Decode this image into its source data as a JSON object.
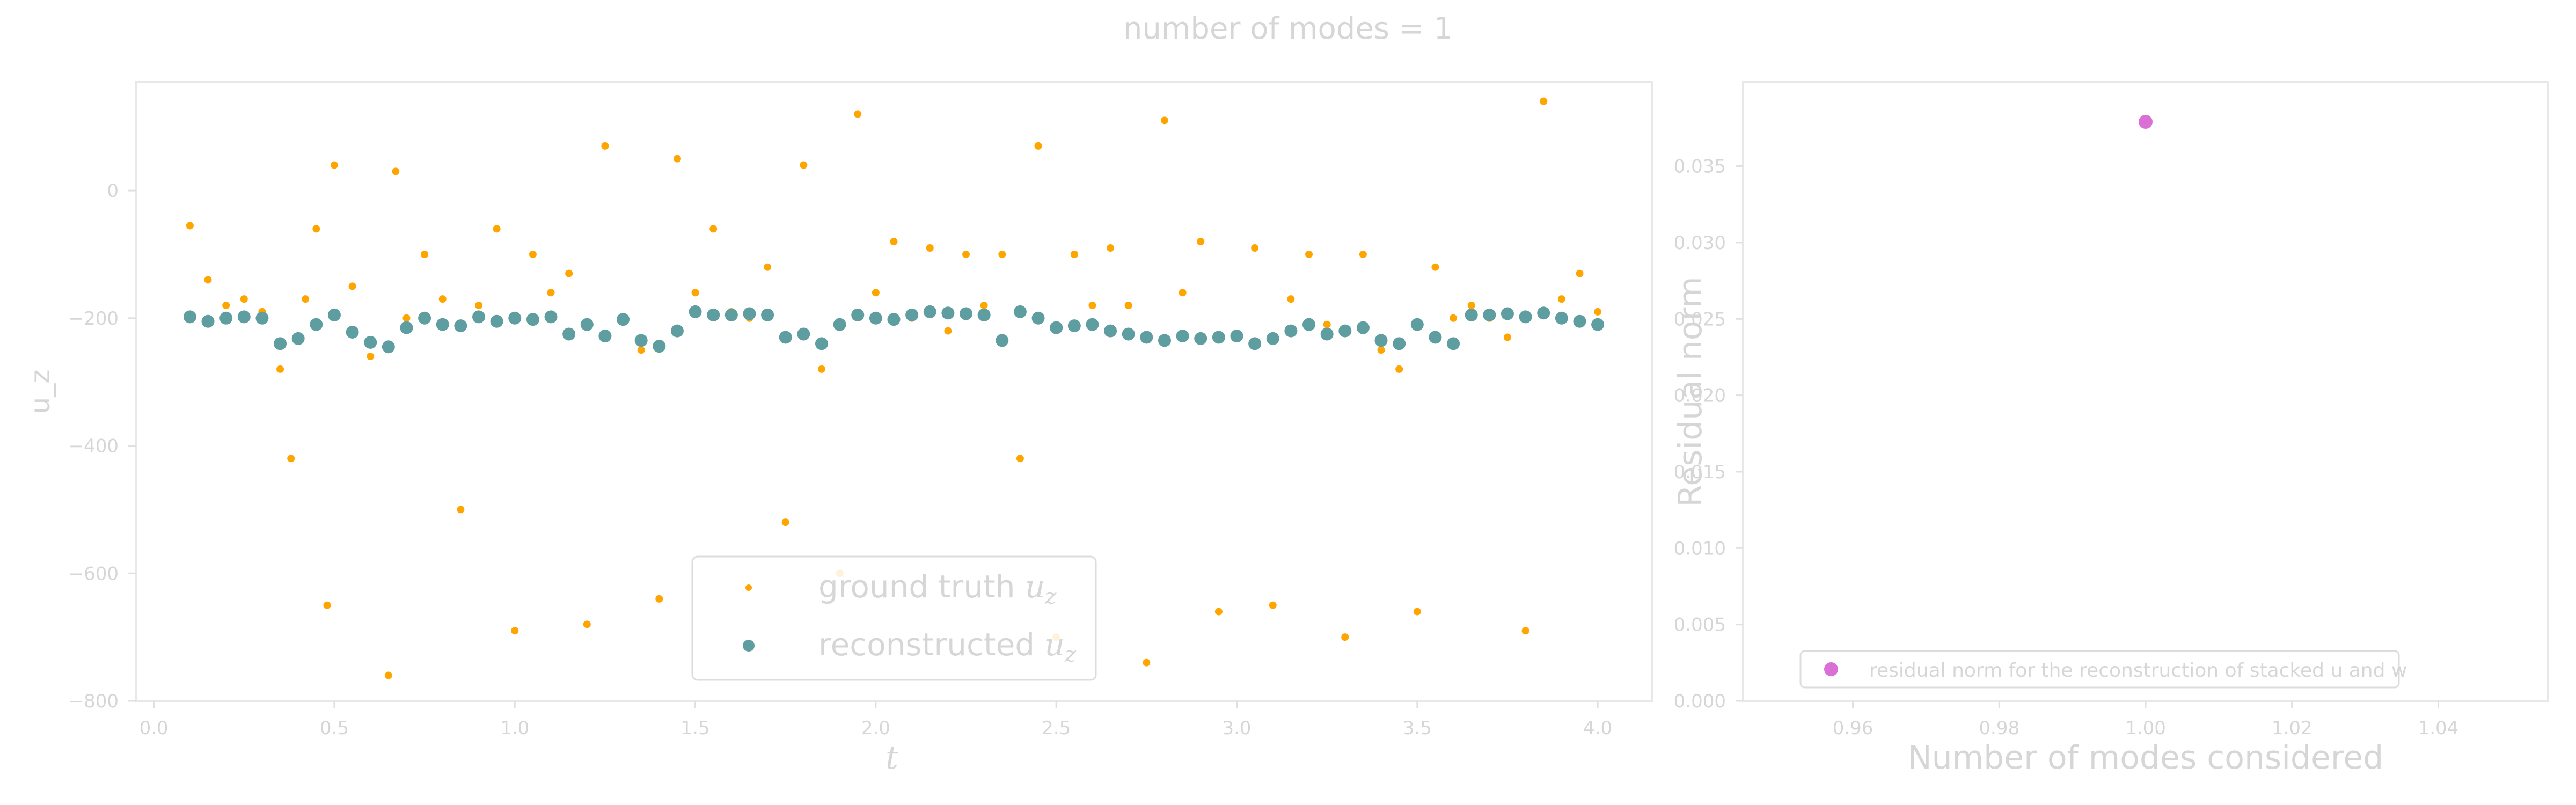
{
  "title": "number of modes = 1",
  "charts": {
    "left": {
      "xlabel": "t",
      "ylabel": "u_z",
      "legend": {
        "ground_truth": {
          "text": "ground truth ",
          "math": "u",
          "sub": "z"
        },
        "reconstructed": {
          "text": "reconstructed ",
          "math": "u",
          "sub": "z"
        }
      }
    },
    "right": {
      "xlabel": "Number of modes considered",
      "ylabel": "Residual norm",
      "legend": {
        "text": "residual norm for the reconstruction of stacked u and w"
      }
    }
  },
  "colors": {
    "ground_truth": "#FFA500",
    "reconstructed": "#5F9EA0",
    "residual": "#DA70D6",
    "axis_text": "#d6d6d6",
    "frame": "#e8e8e8"
  },
  "chart_data": [
    {
      "type": "scatter",
      "title": "number of modes = 1",
      "xlabel": "t",
      "ylabel": "u_z",
      "xlim": [
        -0.05,
        4.15
      ],
      "ylim": [
        -800,
        170
      ],
      "xticks": [
        "0.0",
        "0.5",
        "1.0",
        "1.5",
        "2.0",
        "2.5",
        "3.0",
        "3.5",
        "4.0"
      ],
      "yticks": [
        "0",
        "−200",
        "−400",
        "−600",
        "−800"
      ],
      "grid": false,
      "legend_position": "bottom-center",
      "series": [
        {
          "name": "ground truth u_z",
          "color": "#FFA500",
          "x": [
            0.1,
            0.15,
            0.2,
            0.25,
            0.3,
            0.35,
            0.38,
            0.42,
            0.45,
            0.48,
            0.5,
            0.55,
            0.6,
            0.65,
            0.67,
            0.7,
            0.75,
            0.8,
            0.85,
            0.9,
            0.95,
            1.0,
            1.05,
            1.1,
            1.15,
            1.2,
            1.25,
            1.3,
            1.35,
            1.4,
            1.45,
            1.5,
            1.55,
            1.6,
            1.65,
            1.7,
            1.75,
            1.8,
            1.85,
            1.9,
            1.95,
            2.0,
            2.05,
            2.1,
            2.15,
            2.2,
            2.25,
            2.3,
            2.35,
            2.4,
            2.45,
            2.5,
            2.55,
            2.6,
            2.65,
            2.7,
            2.75,
            2.8,
            2.85,
            2.9,
            2.95,
            3.0,
            3.05,
            3.1,
            3.15,
            3.2,
            3.25,
            3.3,
            3.35,
            3.4,
            3.45,
            3.5,
            3.55,
            3.6,
            3.65,
            3.7,
            3.75,
            3.8,
            3.85,
            3.9,
            3.95,
            4.0
          ],
          "y": [
            -55,
            -140,
            -180,
            -170,
            -190,
            -280,
            -420,
            -170,
            -60,
            -650,
            40,
            -150,
            -260,
            -760,
            30,
            -200,
            -100,
            -170,
            -500,
            -180,
            -60,
            -690,
            -100,
            -160,
            -130,
            -680,
            70,
            -200,
            -250,
            -640,
            50,
            -160,
            -60,
            -190,
            -200,
            -120,
            -520,
            40,
            -280,
            -600,
            120,
            -160,
            -80,
            -200,
            -90,
            -220,
            -100,
            -180,
            -100,
            -420,
            70,
            -700,
            -100,
            -180,
            -90,
            -180,
            -740,
            110,
            -160,
            -80,
            -660,
            -230,
            -90,
            -650,
            -170,
            -100,
            -210,
            -700,
            -100,
            -250,
            -280,
            -660,
            -120,
            -200,
            -180,
            -200,
            -230,
            -690,
            140,
            -170,
            -130,
            -190
          ]
        },
        {
          "name": "reconstructed u_z",
          "color": "#5F9EA0",
          "x": [
            0.1,
            0.15,
            0.2,
            0.25,
            0.3,
            0.35,
            0.4,
            0.45,
            0.5,
            0.55,
            0.6,
            0.65,
            0.7,
            0.75,
            0.8,
            0.85,
            0.9,
            0.95,
            1.0,
            1.05,
            1.1,
            1.15,
            1.2,
            1.25,
            1.3,
            1.35,
            1.4,
            1.45,
            1.5,
            1.55,
            1.6,
            1.65,
            1.7,
            1.75,
            1.8,
            1.85,
            1.9,
            1.95,
            2.0,
            2.05,
            2.1,
            2.15,
            2.2,
            2.25,
            2.3,
            2.35,
            2.4,
            2.45,
            2.5,
            2.55,
            2.6,
            2.65,
            2.7,
            2.75,
            2.8,
            2.85,
            2.9,
            2.95,
            3.0,
            3.05,
            3.1,
            3.15,
            3.2,
            3.25,
            3.3,
            3.35,
            3.4,
            3.45,
            3.5,
            3.55,
            3.6,
            3.65,
            3.7,
            3.75,
            3.8,
            3.85,
            3.9,
            3.95,
            4.0
          ],
          "y": [
            -198,
            -205,
            -200,
            -198,
            -200,
            -240,
            -232,
            -210,
            -195,
            -222,
            -238,
            -245,
            -215,
            -200,
            -210,
            -212,
            -198,
            -205,
            -200,
            -202,
            -198,
            -225,
            -210,
            -228,
            -202,
            -235,
            -244,
            -220,
            -190,
            -195,
            -195,
            -193,
            -195,
            -230,
            -225,
            -240,
            -210,
            -195,
            -200,
            -202,
            -195,
            -190,
            -192,
            -193,
            -195,
            -235,
            -190,
            -200,
            -215,
            -212,
            -210,
            -220,
            -225,
            -230,
            -235,
            -228,
            -232,
            -230,
            -228,
            -240,
            -232,
            -220,
            -210,
            -225,
            -220,
            -215,
            -235,
            -240,
            -210,
            -230,
            -240,
            -195,
            -195,
            -193,
            -198,
            -192,
            -200,
            -205,
            -210
          ]
        }
      ]
    },
    {
      "type": "scatter",
      "xlabel": "Number of modes considered",
      "ylabel": "Residual norm",
      "xlim": [
        0.945,
        1.055
      ],
      "ylim": [
        0.0,
        0.0405
      ],
      "xticks": [
        "0.96",
        "0.98",
        "1.00",
        "1.02",
        "1.04"
      ],
      "yticks": [
        "0.000",
        "0.005",
        "0.010",
        "0.015",
        "0.020",
        "0.025",
        "0.030",
        "0.035"
      ],
      "grid": false,
      "legend_position": "bottom-left",
      "series": [
        {
          "name": "residual norm for the reconstruction of stacked u and w",
          "color": "#DA70D6",
          "x": [
            1.0
          ],
          "y": [
            0.0379
          ]
        }
      ]
    }
  ]
}
